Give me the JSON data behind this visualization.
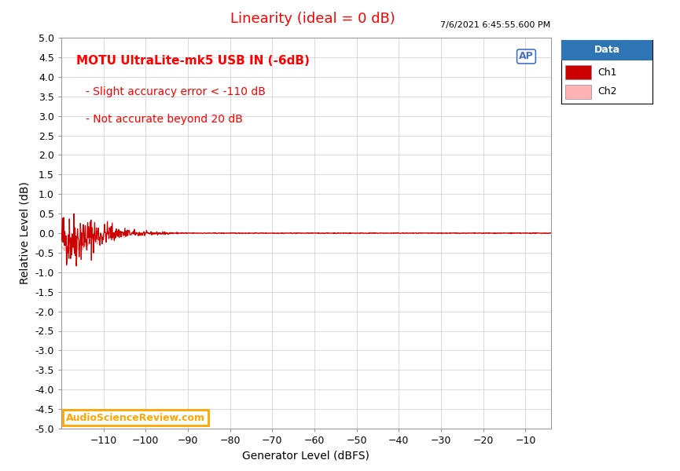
{
  "title": "Linearity (ideal = 0 dB)",
  "title_color": "#FF0000",
  "xlabel": "Generator Level (dBFS)",
  "ylabel": "Relative Level (dB)",
  "xlim": [
    -120,
    -4
  ],
  "ylim": [
    -5.0,
    5.0
  ],
  "xticks": [
    -110,
    -100,
    -90,
    -80,
    -70,
    -60,
    -50,
    -40,
    -30,
    -20,
    -10
  ],
  "yticks": [
    -5.0,
    -4.5,
    -4.0,
    -3.5,
    -3.0,
    -2.5,
    -2.0,
    -1.5,
    -1.0,
    -0.5,
    0.0,
    0.5,
    1.0,
    1.5,
    2.0,
    2.5,
    3.0,
    3.5,
    4.0,
    4.5,
    5.0
  ],
  "timestamp": "7/6/2021 6:45:55.600 PM",
  "ch1_color": "#CC0000",
  "ch2_color": "#FFB3B3",
  "annotation_line1": "MOTU UltraLite-mk5 USB IN (-6dB)",
  "annotation_line2": "- Slight accuracy error < -110 dB",
  "annotation_line3": "- Not accurate beyond 20 dB",
  "annotation_color": "#FF0000",
  "watermark": "AudioScienceReview.com",
  "watermark_color": "#FFA500",
  "bg_color": "#FFFFFF",
  "plot_bg_color": "#FFFFFF",
  "grid_color": "#CCCCCC",
  "legend_header_bg": "#2E75B6",
  "legend_header_color": "#FFFFFF",
  "legend_bg": "#FFFFFF",
  "legend_border_color": "#000000"
}
